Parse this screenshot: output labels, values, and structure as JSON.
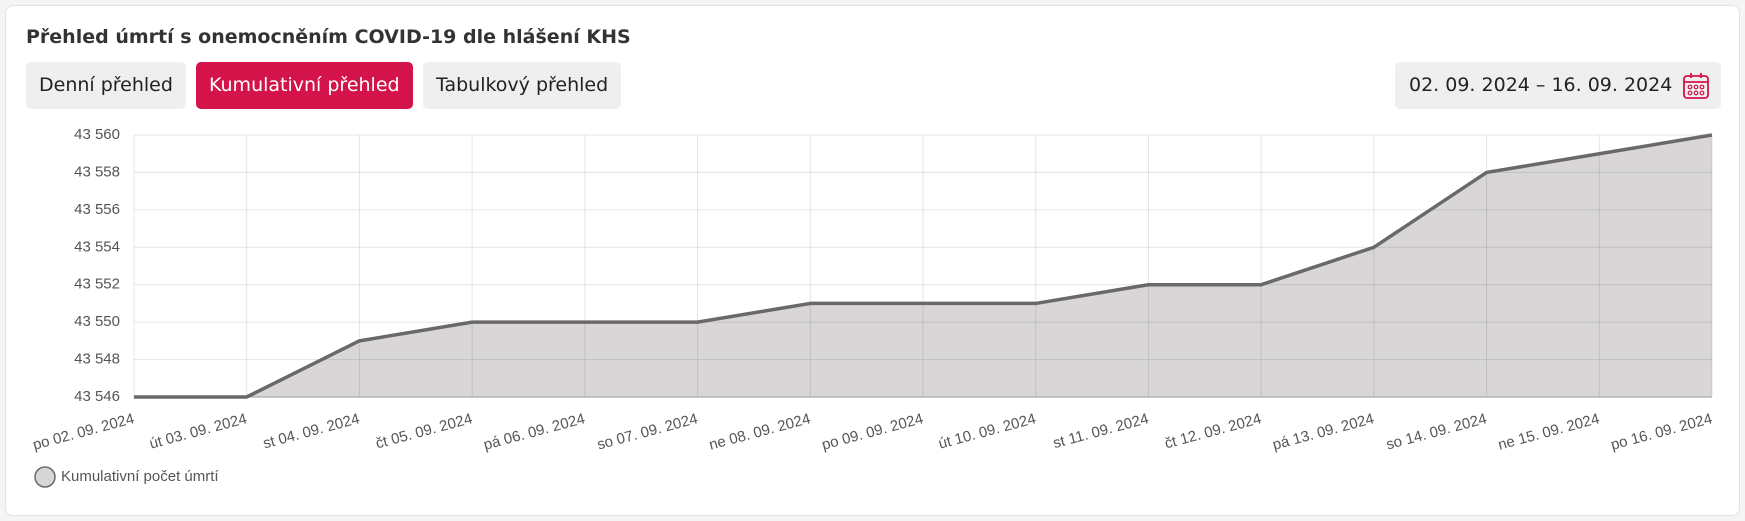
{
  "tabs": [
    "Denní přehled",
    "Kumulativní přehled",
    "Tabulkový přehled"
  ],
  "active_tab": 1,
  "date_range": "02. 09. 2024 – 16. 09. 2024",
  "chart_data": {
    "type": "area",
    "title": "Přehled úmrtí s onemocněním COVID-19 dle hlášení KHS",
    "categories": [
      "po 02. 09. 2024",
      "út 03. 09. 2024",
      "st 04. 09. 2024",
      "čt 05. 09. 2024",
      "pá 06. 09. 2024",
      "so 07. 09. 2024",
      "ne 08. 09. 2024",
      "po 09. 09. 2024",
      "út 10. 09. 2024",
      "st 11. 09. 2024",
      "čt 12. 09. 2024",
      "pá 13. 09. 2024",
      "so 14. 09. 2024",
      "ne 15. 09. 2024",
      "po 16. 09. 2024"
    ],
    "series": [
      {
        "name": "Kumulativní počet úmrtí",
        "color": "#6b6869",
        "fill": "#d8d6d7",
        "values": [
          43546,
          43546,
          43549,
          43550,
          43550,
          43550,
          43551,
          43551,
          43551,
          43552,
          43552,
          43554,
          43558,
          43559,
          43560
        ]
      }
    ],
    "ylim": [
      43546,
      43560
    ],
    "yticks": [
      {
        "value": 43546,
        "label": "43 546"
      },
      {
        "value": 43548,
        "label": "43 548"
      },
      {
        "value": 43550,
        "label": "43 550"
      },
      {
        "value": 43552,
        "label": "43 552"
      },
      {
        "value": 43554,
        "label": "43 554"
      },
      {
        "value": 43556,
        "label": "43 556"
      },
      {
        "value": 43558,
        "label": "43 558"
      },
      {
        "value": 43560,
        "label": "43 560"
      }
    ],
    "grid": true,
    "legend": "bottom-left"
  }
}
